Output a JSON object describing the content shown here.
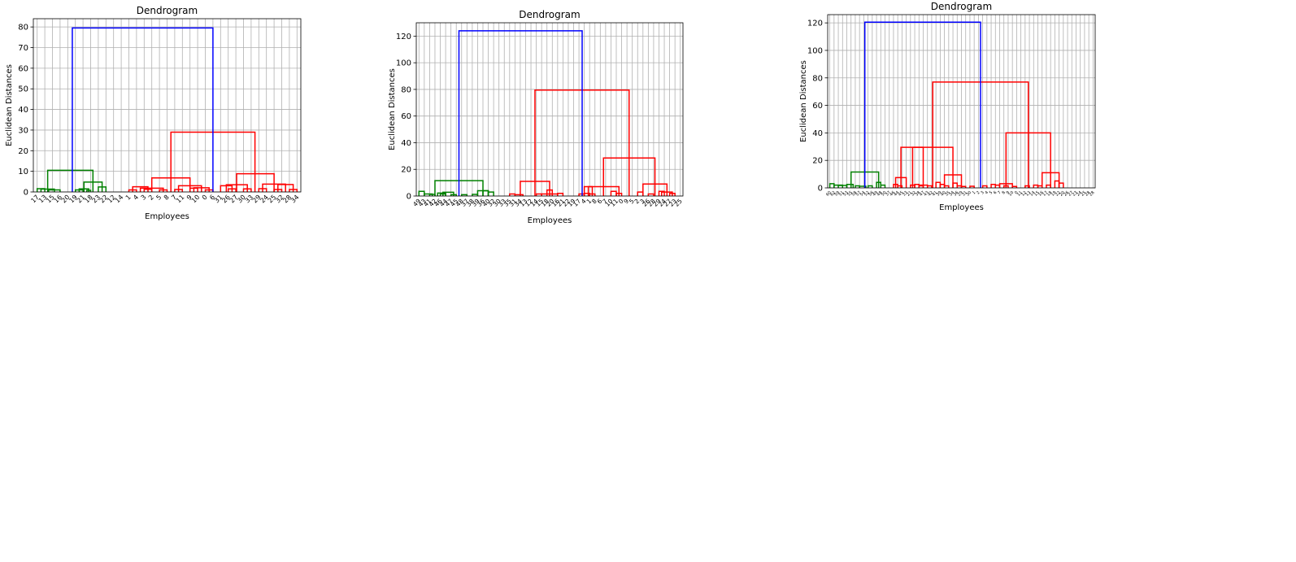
{
  "chart_data": [
    {
      "type": "dendrogram",
      "title": "Dendrogram",
      "xlabel": "Employees",
      "ylabel": "Euclidean Distances",
      "ylim": [
        0,
        84
      ],
      "yticks": [
        0,
        10,
        20,
        30,
        40,
        50,
        60,
        70,
        80
      ],
      "grid": true,
      "leaves": [
        "17",
        "13",
        "15",
        "16",
        "20",
        "19",
        "21",
        "18",
        "23",
        "22",
        "12",
        "14",
        "1",
        "4",
        "3",
        "2",
        "5",
        "8",
        "7",
        "11",
        "9",
        "10",
        "0",
        "6",
        "31",
        "26",
        "27",
        "30",
        "33",
        "29",
        "24",
        "25",
        "32",
        "28",
        "34"
      ],
      "colors": {
        "cluster1": "#008000",
        "cluster2": "#ff0000",
        "root": "#0000ff"
      },
      "links": [
        {
          "l": [
            0,
            1
          ],
          "h": 1.6,
          "c": "g"
        },
        {
          "l": [
            1.5,
            3
          ],
          "h": 1.0,
          "c": "g"
        },
        {
          "l": [
            0.5,
            2.25
          ],
          "h": 1.4,
          "c": "g"
        },
        {
          "l": [
            5,
            6
          ],
          "h": 1.0,
          "c": "g"
        },
        {
          "l": [
            6.5,
            7
          ],
          "h": 0.8,
          "c": "g"
        },
        {
          "l": [
            5.5,
            6.75
          ],
          "h": 1.5,
          "c": "g"
        },
        {
          "l": [
            8,
            9
          ],
          "h": 2.4,
          "c": "g"
        },
        {
          "l": [
            6.125,
            8.5
          ],
          "h": 4.8,
          "c": "g"
        },
        {
          "l": [
            1.375,
            7.3
          ],
          "h": 10.5,
          "c": "g"
        },
        {
          "l": [
            12,
            13
          ],
          "h": 1.0,
          "c": "r"
        },
        {
          "l": [
            14,
            15
          ],
          "h": 1.3,
          "c": "r"
        },
        {
          "l": [
            12.5,
            14.5
          ],
          "h": 2.5,
          "c": "r"
        },
        {
          "l": [
            16,
            17
          ],
          "h": 1.0,
          "c": "r"
        },
        {
          "l": [
            13.5,
            16.5
          ],
          "h": 1.8,
          "c": "r"
        },
        {
          "l": [
            18,
            19
          ],
          "h": 1.2,
          "c": "r"
        },
        {
          "l": [
            20,
            21
          ],
          "h": 1.8,
          "c": "r"
        },
        {
          "l": [
            22,
            23
          ],
          "h": 1.0,
          "c": "r"
        },
        {
          "l": [
            20.5,
            22.5
          ],
          "h": 2.0,
          "c": "r"
        },
        {
          "l": [
            18.5,
            21.5
          ],
          "h": 3.0,
          "c": "r"
        },
        {
          "l": [
            15,
            20
          ],
          "h": 6.8,
          "c": "r"
        },
        {
          "l": [
            25,
            26
          ],
          "h": 1.5,
          "c": "r"
        },
        {
          "l": [
            24,
            25.5
          ],
          "h": 3.0,
          "c": "r"
        },
        {
          "l": [
            27,
            28
          ],
          "h": 1.5,
          "c": "r"
        },
        {
          "l": [
            24.75,
            27.5
          ],
          "h": 3.5,
          "c": "r"
        },
        {
          "l": [
            29,
            30
          ],
          "h": 1.6,
          "c": "r"
        },
        {
          "l": [
            31,
            32
          ],
          "h": 1.2,
          "c": "r"
        },
        {
          "l": [
            33,
            34
          ],
          "h": 1.2,
          "c": "r"
        },
        {
          "l": [
            31.5,
            33.5
          ],
          "h": 3.6,
          "c": "r"
        },
        {
          "l": [
            29.5,
            32.5
          ],
          "h": 3.8,
          "c": "r"
        },
        {
          "l": [
            26.1,
            31
          ],
          "h": 8.8,
          "c": "r"
        },
        {
          "l": [
            17.5,
            28.5
          ],
          "h": 29,
          "c": "r"
        },
        {
          "l": [
            4.6,
            23
          ],
          "h": 79.5,
          "c": "b"
        }
      ]
    },
    {
      "type": "dendrogram",
      "title": "Dendrogram",
      "xlabel": "Employees",
      "ylabel": "Euclidean Distances",
      "ylim": [
        0,
        130
      ],
      "yticks": [
        0,
        20,
        40,
        60,
        80,
        100,
        120
      ],
      "grid": true,
      "leaves": [
        "49",
        "43",
        "41",
        "42",
        "46",
        "44",
        "47",
        "45",
        "48",
        "37",
        "38",
        "39",
        "36",
        "40",
        "32",
        "30",
        "33",
        "35",
        "31",
        "34",
        "13",
        "12",
        "14",
        "15",
        "18",
        "20",
        "16",
        "21",
        "22",
        "19",
        "17",
        "4",
        "1",
        "8",
        "6",
        "7",
        "10",
        "11",
        "0",
        "9",
        "5",
        "2",
        "3",
        "26",
        "28",
        "29",
        "24",
        "27",
        "23",
        "25"
      ],
      "links": [
        {
          "l": [
            0,
            1
          ],
          "h": 3.5,
          "c": "g"
        },
        {
          "l": [
            1,
            2.5
          ],
          "h": 1.5,
          "c": "g"
        },
        {
          "l": [
            2,
            3
          ],
          "h": 1.2,
          "c": "g"
        },
        {
          "l": [
            4,
            5
          ],
          "h": 1.5,
          "c": "g"
        },
        {
          "l": [
            3.5,
            5
          ],
          "h": 2.2,
          "c": "g"
        },
        {
          "l": [
            6,
            7
          ],
          "h": 1.0,
          "c": "g"
        },
        {
          "l": [
            4.5,
            6.5
          ],
          "h": 2.8,
          "c": "g"
        },
        {
          "l": [
            8,
            9
          ],
          "h": 1.0,
          "c": "g"
        },
        {
          "l": [
            10,
            11
          ],
          "h": 1.2,
          "c": "g"
        },
        {
          "l": [
            12,
            13
          ],
          "h": 4.0,
          "c": "g"
        },
        {
          "l": [
            13,
            14
          ],
          "h": 3.0,
          "c": "g"
        },
        {
          "l": [
            11,
            13
          ],
          "h": 4.0,
          "c": "g"
        },
        {
          "l": [
            3,
            12
          ],
          "h": 11.5,
          "c": "g"
        },
        {
          "l": [
            17,
            18
          ],
          "h": 1.5,
          "c": "r"
        },
        {
          "l": [
            18,
            19.5
          ],
          "h": 1.0,
          "c": "r"
        },
        {
          "l": [
            22,
            23
          ],
          "h": 1.5,
          "c": "r"
        },
        {
          "l": [
            24,
            25
          ],
          "h": 4.5,
          "c": "r"
        },
        {
          "l": [
            26,
            27
          ],
          "h": 2.0,
          "c": "r"
        },
        {
          "l": [
            23,
            26
          ],
          "h": 1.5,
          "c": "r"
        },
        {
          "l": [
            19,
            24.5
          ],
          "h": 11.0,
          "c": "r"
        },
        {
          "l": [
            30,
            31
          ],
          "h": 1.5,
          "c": "r"
        },
        {
          "l": [
            31,
            32
          ],
          "h": 2.0,
          "c": "r"
        },
        {
          "l": [
            32,
            33
          ],
          "h": 1.5,
          "c": "r"
        },
        {
          "l": [
            31,
            32.5
          ],
          "h": 7.0,
          "c": "r"
        },
        {
          "l": [
            36,
            37
          ],
          "h": 3.5,
          "c": "r"
        },
        {
          "l": [
            37,
            38
          ],
          "h": 2.0,
          "c": "r"
        },
        {
          "l": [
            31.75,
            37.5
          ],
          "h": 7.0,
          "c": "r"
        },
        {
          "l": [
            41,
            42
          ],
          "h": 3.0,
          "c": "r"
        },
        {
          "l": [
            43,
            44
          ],
          "h": 1.5,
          "c": "r"
        },
        {
          "l": [
            45,
            46
          ],
          "h": 3.5,
          "c": "r"
        },
        {
          "l": [
            47,
            48
          ],
          "h": 2.0,
          "c": "r"
        },
        {
          "l": [
            45.5,
            47.5
          ],
          "h": 3.0,
          "c": "r"
        },
        {
          "l": [
            42,
            46.5
          ],
          "h": 9.0,
          "c": "r"
        },
        {
          "l": [
            34.6,
            44.25
          ],
          "h": 28.5,
          "c": "r"
        },
        {
          "l": [
            21.75,
            39.4
          ],
          "h": 79.5,
          "c": "r"
        },
        {
          "l": [
            7.5,
            30.6
          ],
          "h": 124,
          "c": "b"
        }
      ]
    },
    {
      "type": "dendrogram",
      "title": "Dendrogram",
      "xlabel": "Employees",
      "ylabel": "Euclidean Distances",
      "ylim": [
        0,
        126
      ],
      "yticks": [
        0,
        20,
        40,
        60,
        80,
        100,
        120
      ],
      "grid": true,
      "leaves": [
        "60",
        "62",
        "59",
        "51",
        "53",
        "55",
        "58",
        "57",
        "54",
        "52",
        "56",
        "49",
        "48",
        "50",
        "37",
        "46",
        "44",
        "45",
        "33",
        "21",
        "32",
        "38",
        "47",
        "43",
        "42",
        "41",
        "39",
        "40",
        "35",
        "34",
        "36",
        "29",
        "31",
        "30",
        "1",
        "2",
        "3",
        "4",
        "5",
        "6",
        "7",
        "8",
        "9",
        "10",
        "0",
        "11",
        "12",
        "13",
        "14",
        "15",
        "16",
        "17",
        "18",
        "19",
        "22",
        "20",
        "26",
        "27",
        "23",
        "24",
        "25",
        "28",
        "28"
      ],
      "links": [
        {
          "l": [
            0,
            1
          ],
          "h": 3.0,
          "c": "g"
        },
        {
          "l": [
            1,
            3
          ],
          "h": 2.0,
          "c": "g"
        },
        {
          "l": [
            2,
            4
          ],
          "h": 1.8,
          "c": "g"
        },
        {
          "l": [
            4,
            5.5
          ],
          "h": 2.5,
          "c": "g"
        },
        {
          "l": [
            6,
            7
          ],
          "h": 1.5,
          "c": "g"
        },
        {
          "l": [
            7,
            8.5
          ],
          "h": 1.2,
          "c": "g"
        },
        {
          "l": [
            9,
            10
          ],
          "h": 1.5,
          "c": "g"
        },
        {
          "l": [
            11,
            12
          ],
          "h": 4.0,
          "c": "g"
        },
        {
          "l": [
            12,
            13
          ],
          "h": 2.0,
          "c": "g"
        },
        {
          "l": [
            5,
            11.5
          ],
          "h": 11.5,
          "c": "g"
        },
        {
          "l": [
            15,
            16
          ],
          "h": 2.5,
          "c": "r"
        },
        {
          "l": [
            16,
            17
          ],
          "h": 1.5,
          "c": "r"
        },
        {
          "l": [
            15.5,
            18
          ],
          "h": 7.5,
          "c": "r"
        },
        {
          "l": [
            19,
            20
          ],
          "h": 2.0,
          "c": "r"
        },
        {
          "l": [
            20,
            21
          ],
          "h": 2.5,
          "c": "r"
        },
        {
          "l": [
            21,
            22
          ],
          "h": 1.5,
          "c": "r"
        },
        {
          "l": [
            23,
            24
          ],
          "h": 1.5,
          "c": "r"
        },
        {
          "l": [
            21,
            23
          ],
          "h": 2.0,
          "c": "r"
        },
        {
          "l": [
            16.75,
            22
          ],
          "h": 29.5,
          "c": "r"
        },
        {
          "l": [
            25,
            26
          ],
          "h": 4.0,
          "c": "r"
        },
        {
          "l": [
            26,
            27
          ],
          "h": 2.5,
          "c": "r"
        },
        {
          "l": [
            27,
            28
          ],
          "h": 1.5,
          "c": "r"
        },
        {
          "l": [
            29,
            30
          ],
          "h": 3.5,
          "c": "r"
        },
        {
          "l": [
            30,
            31
          ],
          "h": 1.5,
          "c": "r"
        },
        {
          "l": [
            31,
            32
          ],
          "h": 1.0,
          "c": "r"
        },
        {
          "l": [
            33,
            34
          ],
          "h": 1.2,
          "c": "r"
        },
        {
          "l": [
            27,
            31
          ],
          "h": 9.5,
          "c": "r"
        },
        {
          "l": [
            19.5,
            29
          ],
          "h": 29.5,
          "c": "r"
        },
        {
          "l": [
            36,
            37
          ],
          "h": 1.5,
          "c": "r"
        },
        {
          "l": [
            38,
            39
          ],
          "h": 2.5,
          "c": "r"
        },
        {
          "l": [
            39,
            40
          ],
          "h": 2.0,
          "c": "r"
        },
        {
          "l": [
            41,
            42
          ],
          "h": 1.5,
          "c": "r"
        },
        {
          "l": [
            43,
            44
          ],
          "h": 1.0,
          "c": "r"
        },
        {
          "l": [
            40,
            43
          ],
          "h": 3.0,
          "c": "r"
        },
        {
          "l": [
            46,
            47
          ],
          "h": 1.5,
          "c": "r"
        },
        {
          "l": [
            48,
            49
          ],
          "h": 2.0,
          "c": "r"
        },
        {
          "l": [
            49,
            50
          ],
          "h": 1.5,
          "c": "r"
        },
        {
          "l": [
            51,
            52
          ],
          "h": 2.0,
          "c": "r"
        },
        {
          "l": [
            53,
            54
          ],
          "h": 5.0,
          "c": "r"
        },
        {
          "l": [
            54,
            55
          ],
          "h": 3.5,
          "c": "r"
        },
        {
          "l": [
            50,
            54
          ],
          "h": 11.0,
          "c": "r"
        },
        {
          "l": [
            41.5,
            52
          ],
          "h": 40.0,
          "c": "r"
        },
        {
          "l": [
            24.25,
            46.75
          ],
          "h": 77.0,
          "c": "r"
        },
        {
          "l": [
            8.25,
            35.5
          ],
          "h": 120.5,
          "c": "b"
        }
      ]
    }
  ]
}
